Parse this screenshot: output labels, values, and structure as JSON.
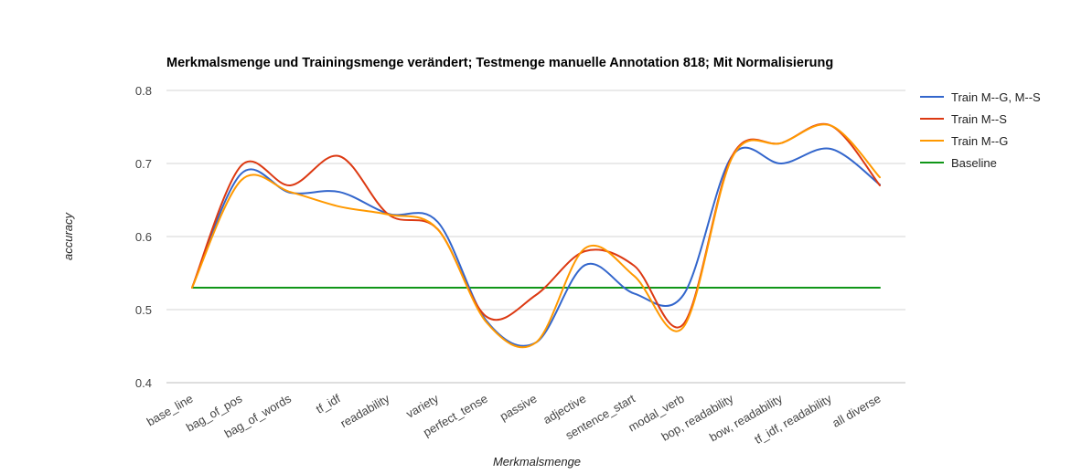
{
  "chart_data": {
    "type": "line",
    "title": "Merkmalsmenge und Trainingsmenge verändert; Testmenge manuelle Annotation 818; Mit Normalisierung",
    "xlabel": "Merkmalsmenge",
    "ylabel": "accuracy",
    "ylim": [
      0.4,
      0.8
    ],
    "yticks": [
      "0.4",
      "0.5",
      "0.6",
      "0.7",
      "0.8"
    ],
    "categories": [
      "base_line",
      "bag_of_pos",
      "bag_of_words",
      "tf_idf",
      "readability",
      "variety",
      "perfect_tense",
      "passive",
      "adjective",
      "sentence_start",
      "modal_verb",
      "bop, readability",
      "bow, readability",
      "tf_idf, readability",
      "all diverse"
    ],
    "legend_position": "right",
    "grid": true,
    "series": [
      {
        "name": "Train M--G, M--S",
        "color": "#3366cc",
        "values": [
          0.53,
          0.686,
          0.66,
          0.661,
          0.631,
          0.62,
          0.484,
          0.455,
          0.561,
          0.522,
          0.52,
          0.711,
          0.7,
          0.72,
          0.671
        ]
      },
      {
        "name": "Train M--S",
        "color": "#dc3912",
        "values": [
          0.53,
          0.697,
          0.67,
          0.71,
          0.63,
          0.61,
          0.49,
          0.52,
          0.58,
          0.56,
          0.48,
          0.711,
          0.728,
          0.752,
          0.67
        ]
      },
      {
        "name": "Train M--G",
        "color": "#ff9900",
        "values": [
          0.53,
          0.677,
          0.661,
          0.641,
          0.63,
          0.61,
          0.482,
          0.455,
          0.584,
          0.546,
          0.476,
          0.709,
          0.728,
          0.752,
          0.681
        ]
      },
      {
        "name": "Baseline",
        "color": "#109618",
        "values": [
          0.53,
          0.53,
          0.53,
          0.53,
          0.53,
          0.53,
          0.53,
          0.53,
          0.53,
          0.53,
          0.53,
          0.53,
          0.53,
          0.53,
          0.53
        ]
      }
    ]
  }
}
